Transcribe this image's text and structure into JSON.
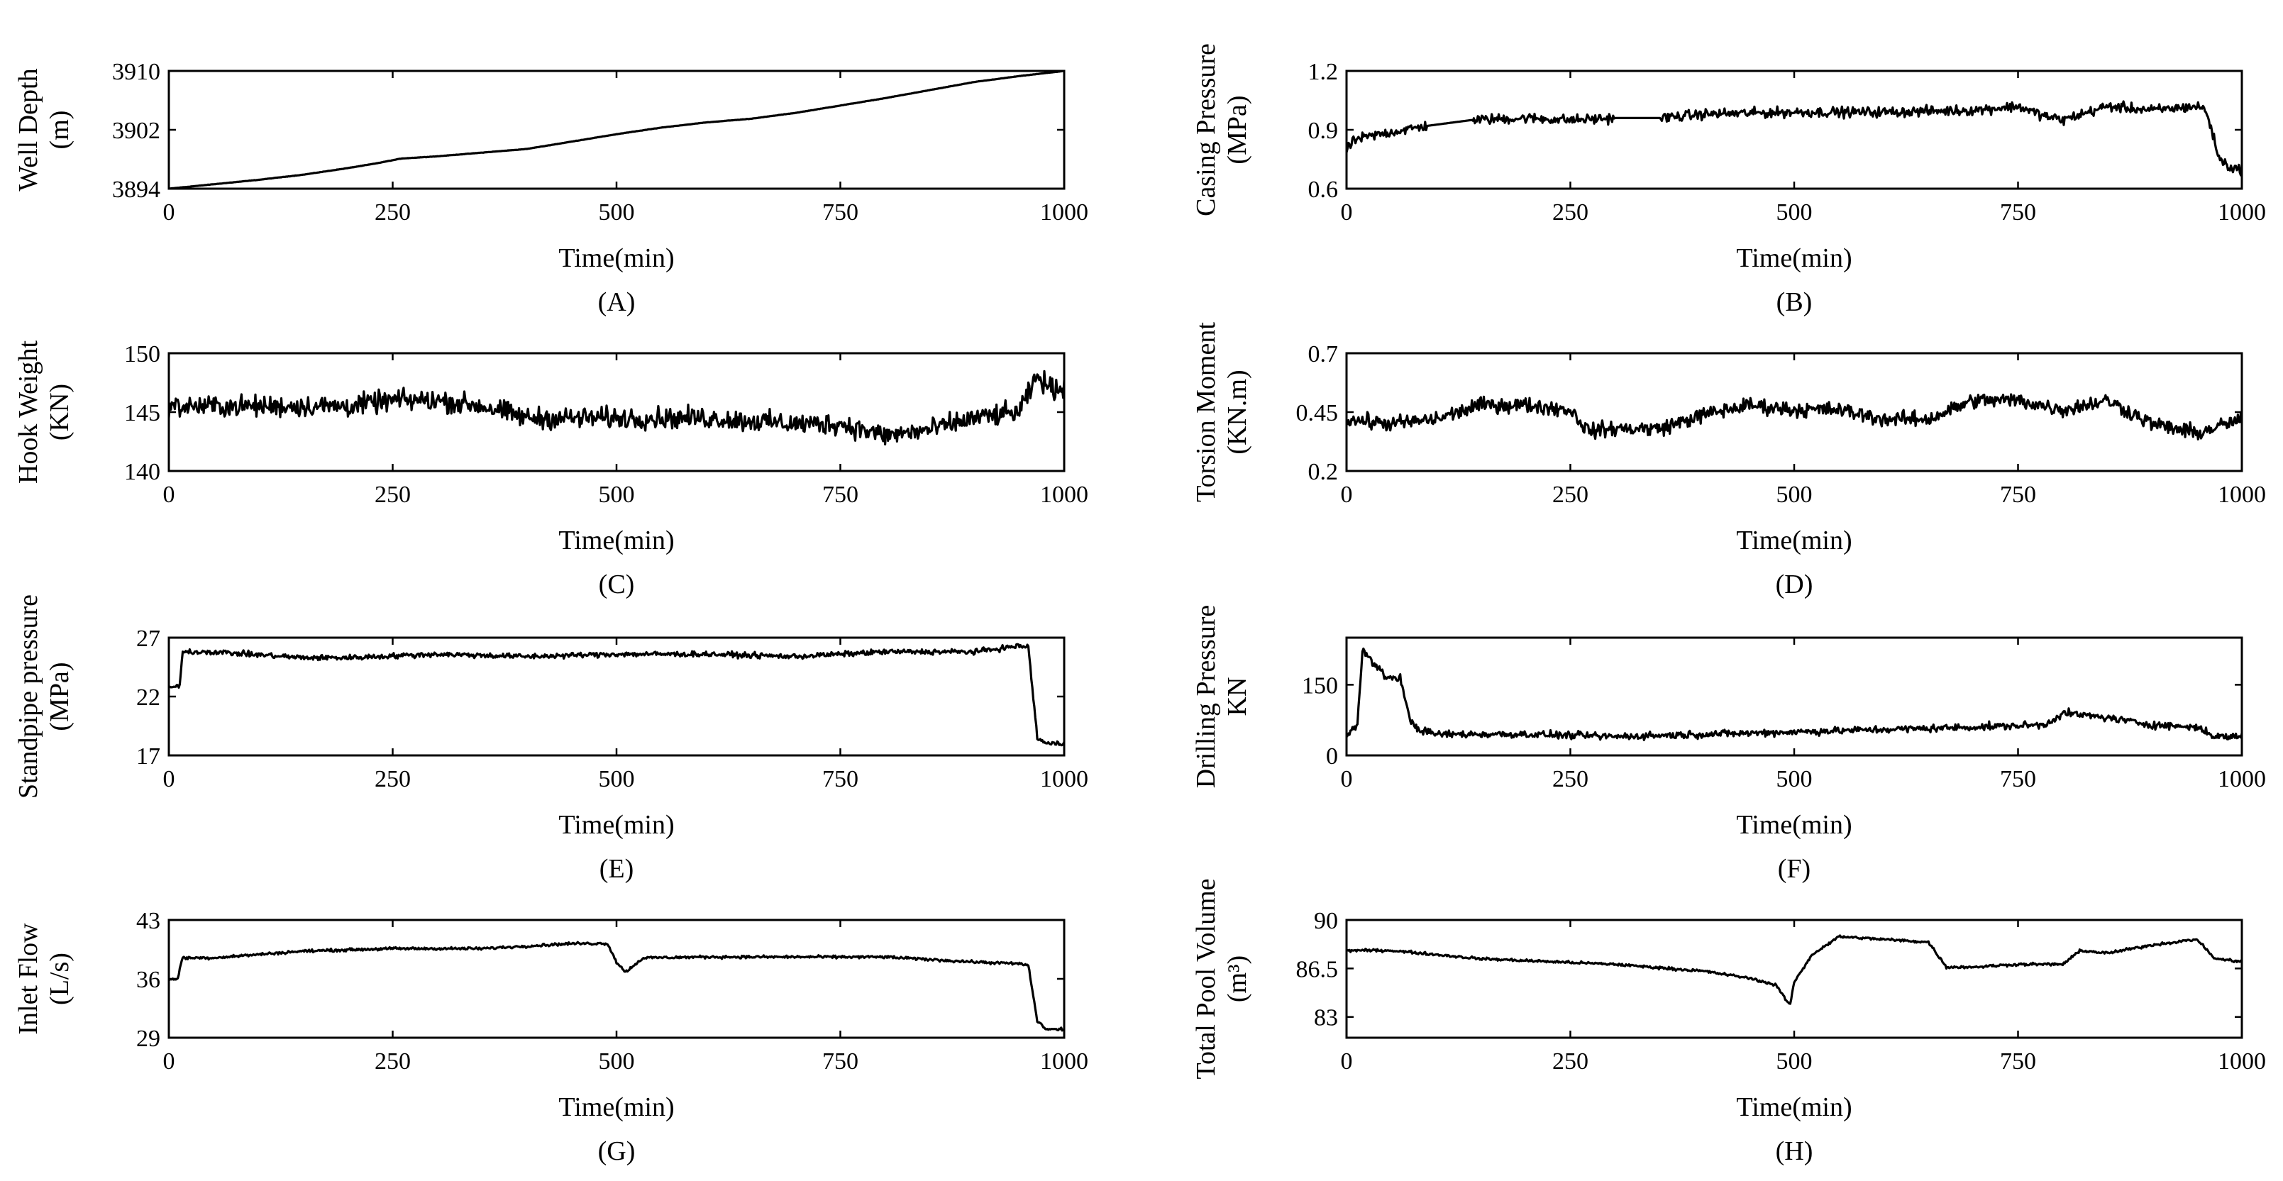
{
  "chart_data": [
    {
      "id": "A",
      "type": "line",
      "caption": "(A)",
      "xlabel": "Time(min)",
      "ylabel_lines": [
        "Well Depth",
        "(m)"
      ],
      "xlim": [
        0,
        1000
      ],
      "ylim": [
        3894,
        3910
      ],
      "xticks": [
        0,
        250,
        500,
        750,
        1000
      ],
      "yticks": [
        3894,
        3902,
        3910
      ],
      "xtick_labels": [
        "0",
        "250",
        "500",
        "750",
        "1000"
      ],
      "ytick_labels": [
        "3894",
        "3902",
        "3910"
      ],
      "series": [
        {
          "name": "Well Depth",
          "x": [
            0,
            50,
            100,
            150,
            200,
            230,
            260,
            300,
            350,
            400,
            450,
            500,
            550,
            600,
            650,
            700,
            750,
            800,
            850,
            900,
            950,
            1000
          ],
          "y": [
            3894.0,
            3894.6,
            3895.2,
            3895.9,
            3896.8,
            3897.4,
            3898.1,
            3898.4,
            3898.9,
            3899.4,
            3900.4,
            3901.4,
            3902.3,
            3903.0,
            3903.5,
            3904.3,
            3905.3,
            3906.3,
            3907.4,
            3908.5,
            3909.3,
            3910.0
          ],
          "noise": 0.03
        }
      ]
    },
    {
      "id": "B",
      "type": "line",
      "caption": "(B)",
      "xlabel": "Time(min)",
      "ylabel_lines": [
        "Casing Pressure",
        "(MPa)"
      ],
      "xlim": [
        0,
        1000
      ],
      "ylim": [
        0.6,
        1.2
      ],
      "xticks": [
        0,
        250,
        500,
        750,
        1000
      ],
      "yticks": [
        0.6,
        0.9,
        1.2
      ],
      "xtick_labels": [
        "0",
        "250",
        "500",
        "750",
        "1000"
      ],
      "ytick_labels": [
        "0.6",
        "0.9",
        "1.2"
      ],
      "series": [
        {
          "name": "Casing Pressure",
          "x": [
            0,
            10,
            40,
            90,
            140,
            200,
            250,
            300,
            350,
            400,
            500,
            600,
            700,
            750,
            780,
            800,
            850,
            900,
            950,
            960,
            975,
            990,
            1000
          ],
          "y": [
            0.8,
            0.85,
            0.88,
            0.92,
            0.95,
            0.96,
            0.95,
            0.96,
            0.96,
            0.98,
            0.99,
            0.99,
            1.0,
            1.02,
            0.97,
            0.95,
            1.02,
            1.0,
            1.02,
            1.0,
            0.75,
            0.7,
            0.7
          ],
          "noise": 0.04,
          "flat_ranges": [
            [
              90,
              140
            ],
            [
              300,
              350
            ]
          ]
        }
      ]
    },
    {
      "id": "C",
      "type": "line",
      "caption": "(C)",
      "xlabel": "Time(min)",
      "ylabel_lines": [
        "Hook Weight",
        "(KN)"
      ],
      "xlim": [
        0,
        1000
      ],
      "ylim": [
        140,
        150
      ],
      "xticks": [
        0,
        250,
        500,
        750,
        1000
      ],
      "yticks": [
        140,
        145,
        150
      ],
      "xtick_labels": [
        "0",
        "250",
        "500",
        "750",
        "1000"
      ],
      "ytick_labels": [
        "140",
        "145",
        "150"
      ],
      "series": [
        {
          "name": "Hook Weight",
          "x": [
            0,
            100,
            200,
            250,
            300,
            350,
            400,
            500,
            600,
            700,
            750,
            800,
            850,
            900,
            950,
            970,
            985,
            1000
          ],
          "y": [
            145.5,
            145.5,
            145.5,
            146.0,
            146.0,
            145.5,
            144.5,
            144.5,
            144.5,
            144.0,
            144.0,
            143.0,
            143.5,
            144.5,
            145.0,
            148.0,
            147.0,
            147.0
          ],
          "noise": 1.4
        }
      ]
    },
    {
      "id": "D",
      "type": "line",
      "caption": "(D)",
      "xlabel": "Time(min)",
      "ylabel_lines": [
        "Torsion Moment",
        "(KN.m)"
      ],
      "xlim": [
        0,
        1000
      ],
      "ylim": [
        0.2,
        0.7
      ],
      "xticks": [
        0,
        250,
        500,
        750,
        1000
      ],
      "yticks": [
        0.2,
        0.45,
        0.7
      ],
      "xtick_labels": [
        "0",
        "250",
        "500",
        "750",
        "1000"
      ],
      "ytick_labels": [
        "0.2",
        "0.45",
        "0.7"
      ],
      "series": [
        {
          "name": "Torsion Moment",
          "x": [
            0,
            50,
            100,
            150,
            200,
            250,
            270,
            300,
            350,
            400,
            450,
            500,
            550,
            600,
            650,
            700,
            750,
            800,
            850,
            900,
            950,
            1000
          ],
          "y": [
            0.42,
            0.4,
            0.42,
            0.48,
            0.48,
            0.46,
            0.37,
            0.38,
            0.38,
            0.44,
            0.48,
            0.46,
            0.46,
            0.42,
            0.42,
            0.5,
            0.5,
            0.46,
            0.5,
            0.4,
            0.36,
            0.42
          ],
          "noise": 0.05
        }
      ]
    },
    {
      "id": "E",
      "type": "line",
      "caption": "(E)",
      "xlabel": "Time(min)",
      "ylabel_lines": [
        "Standpipe pressure",
        "(MPa)"
      ],
      "xlim": [
        0,
        1000
      ],
      "ylim": [
        17,
        27
      ],
      "xticks": [
        0,
        250,
        500,
        750,
        1000
      ],
      "yticks": [
        17,
        22,
        27
      ],
      "xtick_labels": [
        "0",
        "250",
        "500",
        "750",
        "1000"
      ],
      "ytick_labels": [
        "17",
        "22",
        "27"
      ],
      "series": [
        {
          "name": "Standpipe pressure",
          "x": [
            0,
            12,
            15,
            50,
            150,
            200,
            300,
            400,
            500,
            600,
            700,
            800,
            900,
            950,
            960,
            970,
            980,
            1000
          ],
          "y": [
            22.8,
            22.8,
            25.8,
            25.8,
            25.3,
            25.3,
            25.6,
            25.4,
            25.6,
            25.6,
            25.4,
            25.8,
            25.8,
            26.3,
            26.2,
            18.5,
            18.0,
            18.0
          ],
          "noise": 0.35
        }
      ]
    },
    {
      "id": "F",
      "type": "line",
      "caption": "(F)",
      "xlabel": "Time(min)",
      "ylabel_lines": [
        "Drilling Pressure",
        "KN"
      ],
      "xlim": [
        0,
        1000
      ],
      "ylim": [
        0,
        250
      ],
      "xticks": [
        0,
        250,
        500,
        750,
        1000
      ],
      "yticks": [
        0,
        150
      ],
      "xtick_labels": [
        "0",
        "250",
        "500",
        "750",
        "1000"
      ],
      "ytick_labels": [
        "0",
        "150"
      ],
      "series": [
        {
          "name": "Drilling Pressure",
          "x": [
            0,
            5,
            12,
            18,
            30,
            45,
            60,
            70,
            80,
            100,
            200,
            300,
            400,
            500,
            600,
            700,
            780,
            800,
            850,
            900,
            950,
            970,
            1000
          ],
          "y": [
            40,
            60,
            60,
            225,
            195,
            165,
            165,
            80,
            55,
            45,
            45,
            40,
            45,
            50,
            55,
            60,
            65,
            90,
            80,
            65,
            60,
            40,
            40
          ],
          "noise": 12
        }
      ]
    },
    {
      "id": "G",
      "type": "line",
      "caption": "(G)",
      "xlabel": "Time(min)",
      "ylabel_lines": [
        "Inlet Flow",
        "(L/s)"
      ],
      "xlim": [
        0,
        1000
      ],
      "ylim": [
        29,
        43
      ],
      "xticks": [
        0,
        250,
        500,
        750,
        1000
      ],
      "yticks": [
        29,
        36,
        43
      ],
      "xtick_labels": [
        "0",
        "250",
        "500",
        "750",
        "1000"
      ],
      "ytick_labels": [
        "29",
        "36",
        "43"
      ],
      "series": [
        {
          "name": "Inlet Flow",
          "x": [
            0,
            10,
            15,
            50,
            150,
            250,
            350,
            450,
            490,
            500,
            510,
            530,
            600,
            700,
            800,
            900,
            950,
            960,
            970,
            980,
            1000
          ],
          "y": [
            36.0,
            36.0,
            38.5,
            38.5,
            39.3,
            39.6,
            39.6,
            40.2,
            40.2,
            38.0,
            36.8,
            38.5,
            38.6,
            38.6,
            38.6,
            38.0,
            37.8,
            37.6,
            31.0,
            30.0,
            30.0
          ],
          "noise": 0.25
        }
      ]
    },
    {
      "id": "H",
      "type": "line",
      "caption": "(H)",
      "xlabel": "Time(min)",
      "ylabel_lines": [
        "Total Pool Volume",
        "(m³)"
      ],
      "xlim": [
        0,
        1000
      ],
      "ylim": [
        81.5,
        90
      ],
      "xticks": [
        0,
        250,
        500,
        750,
        1000
      ],
      "yticks": [
        83,
        86.5,
        90
      ],
      "xtick_labels": [
        "0",
        "250",
        "500",
        "750",
        "1000"
      ],
      "ytick_labels": [
        "83",
        "86.5",
        "90"
      ],
      "series": [
        {
          "name": "Total Pool Volume",
          "x": [
            0,
            50,
            150,
            300,
            400,
            450,
            480,
            495,
            500,
            520,
            550,
            600,
            650,
            660,
            670,
            700,
            750,
            800,
            820,
            850,
            900,
            950,
            970,
            1000
          ],
          "y": [
            87.8,
            87.8,
            87.2,
            86.8,
            86.3,
            85.8,
            85.3,
            83.8,
            85.5,
            87.5,
            88.8,
            88.6,
            88.4,
            87.5,
            86.6,
            86.6,
            86.8,
            86.8,
            87.8,
            87.6,
            88.2,
            88.6,
            87.2,
            87.0
          ],
          "noise": 0.15
        }
      ]
    }
  ]
}
